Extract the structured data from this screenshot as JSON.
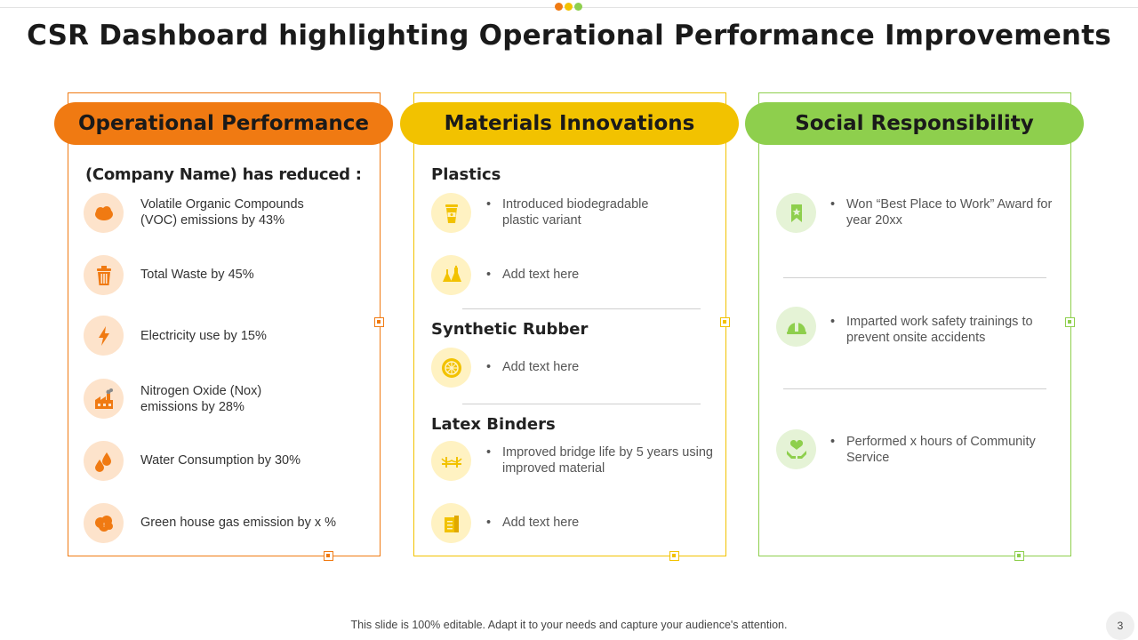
{
  "slide": {
    "title": "CSR Dashboard highlighting Operational Performance Improvements",
    "footer": "This slide is 100% editable. Adapt it to your needs and capture your audience's attention.",
    "page_number": "3"
  },
  "colors": {
    "orange": "#F07A12",
    "orange_light": "#FDE3CB",
    "yellow": "#F2C200",
    "yellow_light": "#FFF2C2",
    "green": "#8ECF4D",
    "green_light": "#E5F3D6"
  },
  "operational": {
    "header": "Operational Performance",
    "intro": "(Company Name) has reduced :",
    "items": [
      {
        "icon": "cloud-icon",
        "text": "Volatile Organic Compounds (VOC) emissions by 43%"
      },
      {
        "icon": "trash-bin-icon",
        "text": "Total Waste by 45%"
      },
      {
        "icon": "lightning-icon",
        "text": "Electricity use by 15%"
      },
      {
        "icon": "factory-icon",
        "text": "Nitrogen Oxide (Nox) emissions by 28%"
      },
      {
        "icon": "water-drops-icon",
        "text": "Water Consumption by 30%"
      },
      {
        "icon": "gas-cloud-icon",
        "text": "Green house gas emission by x %"
      }
    ]
  },
  "materials": {
    "header": "Materials Innovations",
    "sections": [
      {
        "heading": "Plastics",
        "items": [
          {
            "icon": "cup-icon",
            "text": "Introduced biodegradable plastic variant"
          },
          {
            "icon": "flasks-icon",
            "text": "Add text here"
          }
        ]
      },
      {
        "heading": "Synthetic Rubber",
        "items": [
          {
            "icon": "tire-icon",
            "text": "Add text here"
          }
        ]
      },
      {
        "heading": "Latex Binders",
        "items": [
          {
            "icon": "bridge-icon",
            "text": "Improved bridge life by 5 years using improved material"
          },
          {
            "icon": "building-icon",
            "text": "Add text here"
          }
        ]
      }
    ]
  },
  "social": {
    "header": "Social Responsibility",
    "items": [
      {
        "icon": "award-ribbon-icon",
        "text": "Won “Best Place to Work” Award for year 20xx"
      },
      {
        "icon": "safety-helmet-icon",
        "text": "Imparted work safety trainings to prevent onsite accidents"
      },
      {
        "icon": "heart-hands-icon",
        "text": "Performed x hours of Community Service"
      }
    ]
  }
}
